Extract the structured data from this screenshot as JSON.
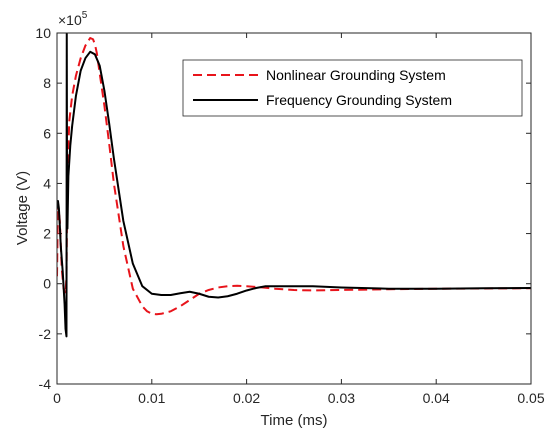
{
  "chart_data": {
    "type": "line",
    "xlabel": "Time (ms)",
    "ylabel": "Voltage (V)",
    "xlim": [
      0,
      0.05
    ],
    "ylim": [
      -4,
      10
    ],
    "y_multiplier_base": "×10",
    "y_multiplier_exp": "5",
    "xticks": [
      0,
      0.01,
      0.02,
      0.03,
      0.04,
      0.05
    ],
    "xtick_labels": [
      "0",
      "0.01",
      "0.02",
      "0.03",
      "0.04",
      "0.05"
    ],
    "yticks": [
      -4,
      -2,
      0,
      2,
      4,
      6,
      8,
      10
    ],
    "ytick_labels": [
      "-4",
      "-2",
      "0",
      "2",
      "4",
      "6",
      "8",
      "10"
    ],
    "legend_position": "top-right",
    "grid": false,
    "series": [
      {
        "name": "Nonlinear Grounding System",
        "color": "#e8141b",
        "dash": "dashed",
        "x": [
          0,
          0.0001,
          0.0003,
          0.0005,
          0.0007,
          0.0009,
          0.001,
          0.0011,
          0.0013,
          0.0016,
          0.002,
          0.0025,
          0.003,
          0.0035,
          0.0038,
          0.004,
          0.0042,
          0.0045,
          0.005,
          0.0055,
          0.006,
          0.007,
          0.008,
          0.009,
          0.0095,
          0.01,
          0.0105,
          0.011,
          0.0115,
          0.012,
          0.0125,
          0.013,
          0.014,
          0.015,
          0.016,
          0.017,
          0.018,
          0.019,
          0.02,
          0.021,
          0.022,
          0.023,
          0.025,
          0.027,
          0.03,
          0.035,
          0.04,
          0.045,
          0.05
        ],
        "y": [
          0.3,
          3.2,
          2.5,
          0.6,
          -0.2,
          -0.4,
          0.3,
          4.5,
          6.5,
          7.5,
          8.3,
          9.0,
          9.5,
          9.8,
          9.75,
          9.55,
          9.2,
          8.4,
          7.1,
          5.6,
          4.0,
          1.5,
          -0.2,
          -0.9,
          -1.1,
          -1.2,
          -1.22,
          -1.2,
          -1.15,
          -1.1,
          -1.0,
          -0.9,
          -0.65,
          -0.4,
          -0.25,
          -0.15,
          -0.1,
          -0.08,
          -0.1,
          -0.13,
          -0.16,
          -0.2,
          -0.25,
          -0.27,
          -0.25,
          -0.22,
          -0.2,
          -0.19,
          -0.18
        ]
      },
      {
        "name": "Frequency Grounding System",
        "color": "#000000",
        "dash": "solid",
        "x": [
          0,
          0.0001,
          0.0002,
          0.0003,
          0.0004,
          0.0006,
          0.0008,
          0.0009,
          0.001,
          0.00103,
          0.00106,
          0.0011,
          0.0012,
          0.0014,
          0.0016,
          0.0018,
          0.002,
          0.0025,
          0.003,
          0.0035,
          0.004,
          0.0045,
          0.005,
          0.0055,
          0.006,
          0.007,
          0.008,
          0.009,
          0.01,
          0.011,
          0.012,
          0.013,
          0.014,
          0.015,
          0.016,
          0.017,
          0.018,
          0.019,
          0.02,
          0.021,
          0.022,
          0.023,
          0.025,
          0.027,
          0.03,
          0.035,
          0.04,
          0.045,
          0.05
        ],
        "y": [
          3.0,
          3.3,
          3.0,
          2.3,
          1.5,
          0.5,
          -0.8,
          -1.8,
          -2.1,
          10.0,
          3.5,
          2.2,
          4.3,
          5.5,
          6.3,
          6.9,
          7.5,
          8.5,
          9.0,
          9.25,
          9.15,
          8.7,
          7.7,
          6.4,
          5.0,
          2.5,
          0.8,
          -0.1,
          -0.4,
          -0.45,
          -0.45,
          -0.38,
          -0.32,
          -0.4,
          -0.52,
          -0.55,
          -0.5,
          -0.4,
          -0.27,
          -0.17,
          -0.1,
          -0.1,
          -0.1,
          -0.1,
          -0.15,
          -0.2,
          -0.2,
          -0.18,
          -0.17
        ]
      }
    ]
  }
}
